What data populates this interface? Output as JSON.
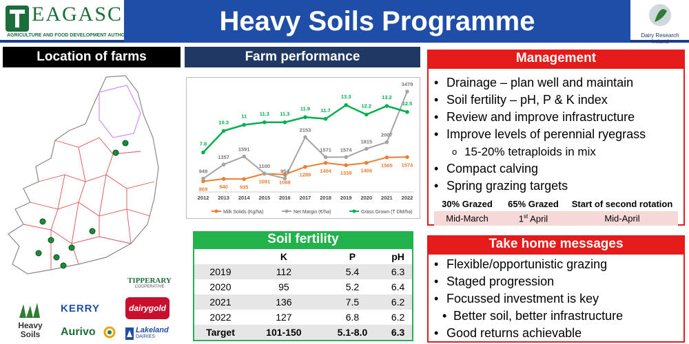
{
  "header": {
    "title": "Heavy Soils Programme",
    "teagasc": "EAGASC",
    "teagasc_sub": "Agriculture and Food Development Authority",
    "dri": "Dairy Research Ireland"
  },
  "location": {
    "title": "Location of farms"
  },
  "performance": {
    "title": "Farm performance"
  },
  "chart_data": {
    "type": "line",
    "x": [
      2012,
      2013,
      2014,
      2015,
      2016,
      2017,
      2018,
      2019,
      2020,
      2021,
      2022
    ],
    "series": [
      {
        "name": "Milk Solids (Kg/ha)",
        "color": "#ed7d31",
        "values": [
          869,
          940,
          935,
          1091,
          1068,
          1289,
          1404,
          1338,
          1406,
          1565,
          1574
        ]
      },
      {
        "name": "Net Margin (€/ha)",
        "color": "#a5a5a5",
        "values": [
          948,
          1357,
          1591,
          1100,
          954,
          2153,
          1571,
          1574,
          1815,
          2007,
          3479
        ]
      },
      {
        "name": "Grass Grown (T DM/ha)",
        "color": "#00b050",
        "values": [
          7.8,
          10.3,
          11,
          11.3,
          11.3,
          11.9,
          11.7,
          13.3,
          12.2,
          13.2,
          12.5
        ]
      }
    ]
  },
  "soil": {
    "title": "Soil fertility",
    "headers": [
      "",
      "K",
      "P",
      "pH"
    ],
    "rows": [
      [
        "2019",
        "112",
        "5.4",
        "6.3"
      ],
      [
        "2020",
        "95",
        "5.2",
        "6.4"
      ],
      [
        "2021",
        "136",
        "7.5",
        "6.2"
      ],
      [
        "2022",
        "127",
        "6.8",
        "6.2"
      ],
      [
        "Target",
        "101-150",
        "5.1-8.0",
        "6.3"
      ]
    ]
  },
  "management": {
    "title": "Management",
    "items": [
      "Drainage – plan well and maintain",
      "Soil fertility – pH, P & K index",
      "Review and improve infrastructure",
      "Improve levels of perennial ryegrass"
    ],
    "sub": "15-20% tetraploids in mix",
    "items2": [
      "Compact calving",
      "Spring grazing targets"
    ],
    "grazing": {
      "headers": [
        "30% Grazed",
        "65% Grazed",
        "Start of second rotation"
      ],
      "values": [
        "Mid-March",
        "1",
        "st",
        "April",
        "Mid-April"
      ]
    }
  },
  "takehome": {
    "title": "Take home messages",
    "items": [
      "Flexible/opportunistic grazing",
      "Staged progression",
      "Focussed investment is key"
    ],
    "sub": "Better soil, better infrastructure",
    "last": "Good returns achievable"
  },
  "logos": {
    "tipperary": "TIPPERARY",
    "tipperary_sub": "COOPERATIVE",
    "heavy": "Heavy",
    "soils": "Soils",
    "kerry": "KERRY",
    "dairygold": "dairygold",
    "aurivo": "Aurivo",
    "lakeland": "Lakeland",
    "dairies": "DAIRIES"
  }
}
